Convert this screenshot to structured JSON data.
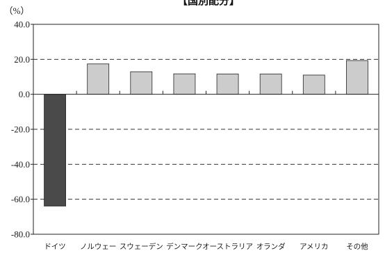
{
  "chart_data": {
    "type": "bar",
    "title": "【国別配分】",
    "ylabel": "（%）",
    "xlabel": "",
    "categories": [
      "ドイツ",
      "ノルウェー",
      "スウェーデン",
      "デンマーク",
      "オーストラリア",
      "オランダ",
      "アメリカ",
      "その他"
    ],
    "values": [
      -63.9,
      17.4,
      12.9,
      11.7,
      11.6,
      11.6,
      11.0,
      19.3
    ],
    "ylim": [
      -80,
      40
    ],
    "yticks": [
      40,
      20,
      0,
      -20,
      -40,
      -60,
      -80
    ],
    "ytick_labels": [
      "40.0",
      "20.0",
      "0.0",
      "-20.0",
      "-40.0",
      "-60.0",
      "-80.0"
    ],
    "grid": "horizontal dashed",
    "colors": {
      "highlight": "#4a4a4a",
      "bar": "#cccccc",
      "bar_edge": "#222222",
      "axis": "#222222",
      "grid": "#333333"
    },
    "highlight_index": 0
  }
}
